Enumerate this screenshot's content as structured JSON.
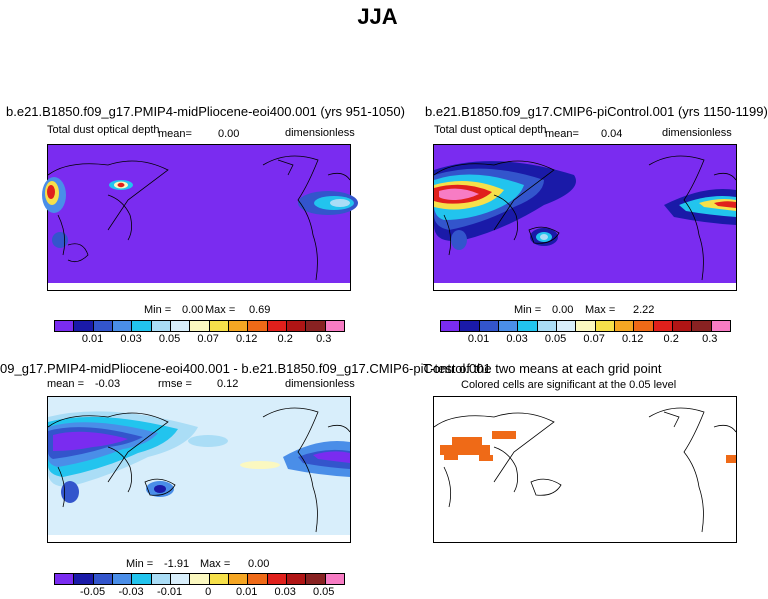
{
  "title": "JJA",
  "panels": {
    "p1": {
      "title": "b.e21.B1850.f09_g17.PMIP4-midPliocene-eoi400.001 (yrs 951-1050)",
      "left_label": "Total dust optical depth",
      "mean_label": "mean=",
      "mean_value": "0.00",
      "units": "dimensionless",
      "min_label": "Min =",
      "min_value": "0.00",
      "max_label": "Max =",
      "max_value": "0.69"
    },
    "p2": {
      "title": "b.e21.B1850.f09_g17.CMIP6-piControl.001 (yrs 1150-1199)",
      "left_label": "Total dust optical depth",
      "mean_label": "mean=",
      "mean_value": "0.04",
      "units": "dimensionless",
      "min_label": "Min =",
      "min_value": "0.00",
      "max_label": "Max =",
      "max_value": "2.22"
    },
    "p3": {
      "title": "09_g17.PMIP4-midPliocene-eoi400.001 - b.e21.B1850.f09_g17.CMIP6-piControl.001",
      "mean_label": "mean =",
      "mean_value": "-0.03",
      "rmse_label": "rmse =",
      "rmse_value": "0.12",
      "units": "dimensionless",
      "min_label": "Min =",
      "min_value": "-1.91",
      "max_label": "Max =",
      "max_value": "0.00"
    },
    "p4": {
      "title": "T-test of the two means at each grid point",
      "subtitle": "Colored cells are significant at the 0.05 level"
    }
  },
  "colorbar_abs": {
    "colors": [
      "#7a2cf0",
      "#1a1aa8",
      "#3355cc",
      "#4a8ee8",
      "#22c4ee",
      "#aaddf6",
      "#d8eefb",
      "#fbf8c0",
      "#f6e04a",
      "#f5a623",
      "#ef6a17",
      "#e0201c",
      "#b01515",
      "#882222",
      "#f77cc4"
    ],
    "ticks": [
      "0.01",
      "0.03",
      "0.05",
      "0.07",
      "0.12",
      "0.2",
      "0.3"
    ]
  },
  "colorbar_diff": {
    "colors": [
      "#7a2cf0",
      "#1a1aa8",
      "#3355cc",
      "#4a8ee8",
      "#22c4ee",
      "#aaddf6",
      "#d8eefb",
      "#fbf8c0",
      "#f6e04a",
      "#f5a623",
      "#ef6a17",
      "#e0201c",
      "#b01515",
      "#882222",
      "#f77cc4"
    ],
    "ticks": [
      "-0.05",
      "-0.03",
      "-0.01",
      "0",
      "0.01",
      "0.03",
      "0.05"
    ]
  },
  "map_colors": {
    "background_p1_p2": "#7a2cf0",
    "background_p3": "#d8eefb",
    "background_p4": "#ffffff",
    "significance": "#ef6a17"
  }
}
